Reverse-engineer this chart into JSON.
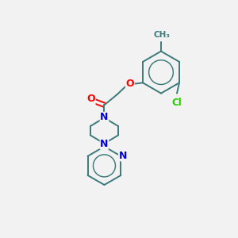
{
  "background_color": "#f2f2f2",
  "bond_color": "#3a7a7a",
  "atom_colors": {
    "O": "#ff0000",
    "N": "#0000ee",
    "Cl": "#22cc00",
    "C": "#3a7a7a",
    "CH3": "#3a7a7a"
  },
  "figsize": [
    3.0,
    3.0
  ],
  "dpi": 100,
  "lw": 1.4
}
